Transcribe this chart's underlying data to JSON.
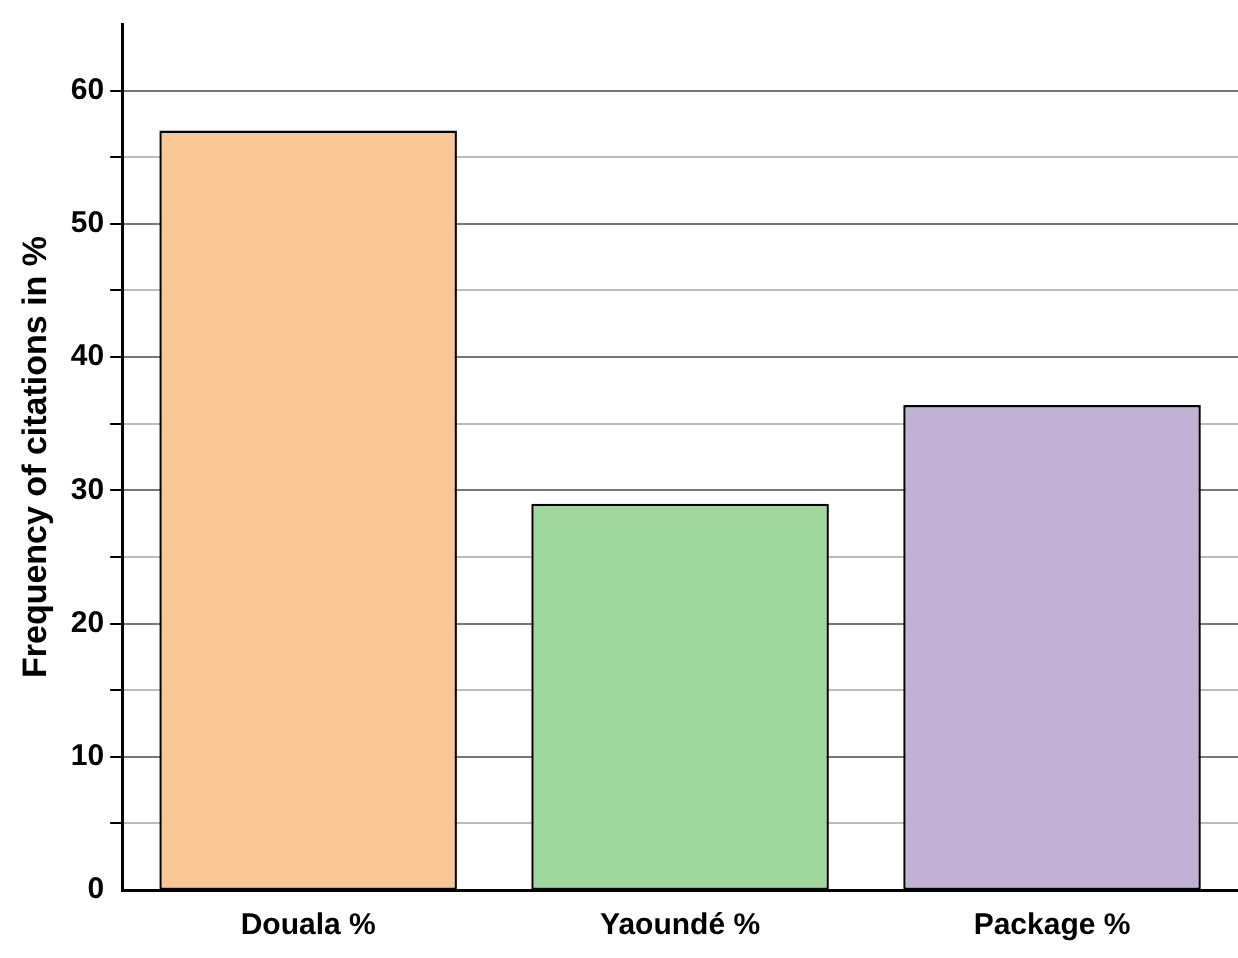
{
  "chart_data": {
    "type": "bar",
    "ylabel": "Frequency of citations in %",
    "categories": [
      "Douala %",
      "Yaoundé %",
      "Package %"
    ],
    "values": [
      57,
      29,
      36.4
    ],
    "colors": [
      "#f9c795",
      "#9fd79c",
      "#c2b1d5"
    ],
    "ylim": [
      0,
      65
    ],
    "yticks": [
      0,
      {
        "value": 5,
        "label": null
      },
      10,
      {
        "value": 15,
        "label": null
      },
      20,
      {
        "value": 25,
        "label": null
      },
      30,
      {
        "value": 35,
        "label": null
      },
      40,
      {
        "value": 45,
        "label": null
      },
      50,
      {
        "value": 55,
        "label": null
      },
      60
    ],
    "grid": "y",
    "legend": false
  }
}
